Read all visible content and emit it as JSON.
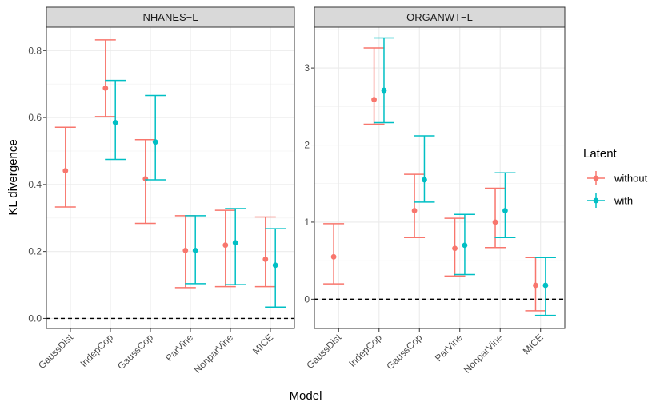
{
  "chart_data": {
    "type": "errorbar",
    "xlabel": "Model",
    "ylabel": "KL divergence",
    "legend": {
      "title": "Latent",
      "position": "right"
    },
    "series": [
      {
        "name": "without",
        "color": "#F8766D"
      },
      {
        "name": "with",
        "color": "#00BFC4"
      }
    ],
    "categories": [
      "GaussDist",
      "IndepCop",
      "GaussCop",
      "ParVine",
      "NonparVine",
      "MICE"
    ],
    "reference_line": {
      "y": 0,
      "style": "dashed"
    },
    "panels": [
      {
        "title": "NHANES−L",
        "ylim": [
          -0.03,
          0.87
        ],
        "yticks": [
          0.0,
          0.2,
          0.4,
          0.6,
          0.8
        ],
        "ytick_labels": [
          "0.0",
          "0.2",
          "0.4",
          "0.6",
          "0.8"
        ],
        "points": [
          {
            "category": "GaussDist",
            "series": "without",
            "y": 0.441,
            "lo": 0.333,
            "hi": 0.571
          },
          {
            "category": "IndepCop",
            "series": "without",
            "y": 0.688,
            "lo": 0.603,
            "hi": 0.832
          },
          {
            "category": "IndepCop",
            "series": "with",
            "y": 0.585,
            "lo": 0.475,
            "hi": 0.711
          },
          {
            "category": "GaussCop",
            "series": "without",
            "y": 0.417,
            "lo": 0.284,
            "hi": 0.534
          },
          {
            "category": "GaussCop",
            "series": "with",
            "y": 0.527,
            "lo": 0.414,
            "hi": 0.666
          },
          {
            "category": "ParVine",
            "series": "without",
            "y": 0.203,
            "lo": 0.092,
            "hi": 0.307
          },
          {
            "category": "ParVine",
            "series": "with",
            "y": 0.203,
            "lo": 0.104,
            "hi": 0.307
          },
          {
            "category": "NonparVine",
            "series": "without",
            "y": 0.219,
            "lo": 0.095,
            "hi": 0.323
          },
          {
            "category": "NonparVine",
            "series": "with",
            "y": 0.226,
            "lo": 0.101,
            "hi": 0.328
          },
          {
            "category": "MICE",
            "series": "without",
            "y": 0.177,
            "lo": 0.095,
            "hi": 0.303
          },
          {
            "category": "MICE",
            "series": "with",
            "y": 0.159,
            "lo": 0.034,
            "hi": 0.268
          }
        ]
      },
      {
        "title": "ORGANWT−L",
        "ylim": [
          -0.38,
          3.53
        ],
        "yticks": [
          0,
          1,
          2,
          3
        ],
        "ytick_labels": [
          "0",
          "1",
          "2",
          "3"
        ],
        "points": [
          {
            "category": "GaussDist",
            "series": "without",
            "y": 0.55,
            "lo": 0.2,
            "hi": 0.98
          },
          {
            "category": "IndepCop",
            "series": "without",
            "y": 2.59,
            "lo": 2.27,
            "hi": 3.26
          },
          {
            "category": "IndepCop",
            "series": "with",
            "y": 2.71,
            "lo": 2.29,
            "hi": 3.39
          },
          {
            "category": "GaussCop",
            "series": "without",
            "y": 1.15,
            "lo": 0.8,
            "hi": 1.62
          },
          {
            "category": "GaussCop",
            "series": "with",
            "y": 1.55,
            "lo": 1.26,
            "hi": 2.12
          },
          {
            "category": "ParVine",
            "series": "without",
            "y": 0.66,
            "lo": 0.3,
            "hi": 1.05
          },
          {
            "category": "ParVine",
            "series": "with",
            "y": 0.7,
            "lo": 0.32,
            "hi": 1.1
          },
          {
            "category": "NonparVine",
            "series": "without",
            "y": 1.0,
            "lo": 0.67,
            "hi": 1.44
          },
          {
            "category": "NonparVine",
            "series": "with",
            "y": 1.15,
            "lo": 0.8,
            "hi": 1.64
          },
          {
            "category": "MICE",
            "series": "without",
            "y": 0.18,
            "lo": -0.15,
            "hi": 0.54
          },
          {
            "category": "MICE",
            "series": "with",
            "y": 0.18,
            "lo": -0.21,
            "hi": 0.54
          }
        ]
      }
    ]
  }
}
